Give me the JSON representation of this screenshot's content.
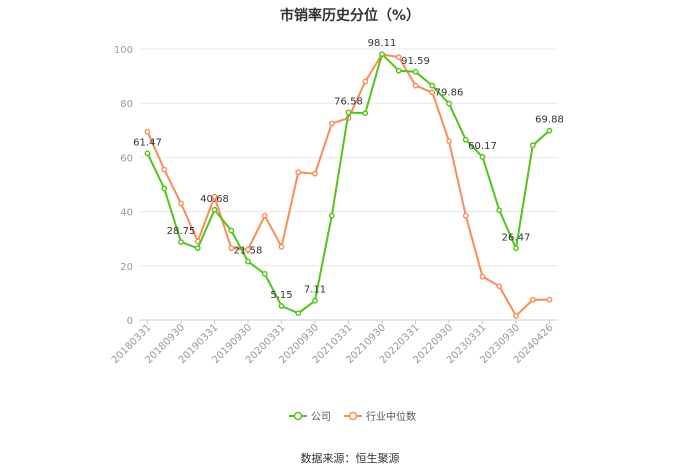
{
  "chart_data": {
    "type": "line",
    "title": "市销率历史分位（%）",
    "ylim": [
      0,
      100
    ],
    "yticks": [
      0,
      20,
      40,
      60,
      80,
      100
    ],
    "grid": true,
    "legend_position": "bottom",
    "x": [
      "20180331",
      "20180630",
      "20180930",
      "20181231",
      "20190331",
      "20190630",
      "20190930",
      "20191231",
      "20200331",
      "20200630",
      "20200930",
      "20201231",
      "20210331",
      "20210630",
      "20210930",
      "20211231",
      "20220331",
      "20220630",
      "20220930",
      "20221231",
      "20230331",
      "20230630",
      "20230930",
      "20231231",
      "20240426"
    ],
    "x_tick_labels": [
      "20180331",
      "20180930",
      "20190331",
      "20190930",
      "20200331",
      "20200930",
      "20210331",
      "20210930",
      "20220331",
      "20220930",
      "20230331",
      "20230930",
      "20240426"
    ],
    "series": [
      {
        "name": "公司",
        "color": "#52c41a",
        "values": [
          61.47,
          48.5,
          28.75,
          26.5,
          40.68,
          33,
          21.58,
          17,
          5.15,
          2.5,
          7.11,
          38.5,
          76.58,
          76.3,
          98.11,
          92,
          91.59,
          86.5,
          79.86,
          66.5,
          60.17,
          40.5,
          26.47,
          64.5,
          69.88
        ]
      },
      {
        "name": "行业中位数",
        "color": "#fa8c5a",
        "values": [
          69.5,
          55.5,
          43,
          29,
          45.5,
          26.5,
          26,
          38.5,
          27,
          54.5,
          54,
          72.5,
          74.5,
          88,
          98,
          97,
          86.5,
          84,
          66,
          38.5,
          16,
          12.5,
          1.5,
          7.5,
          7.5
        ]
      }
    ],
    "data_labels": [
      {
        "series": 0,
        "index": 0,
        "text": "61.47"
      },
      {
        "series": 0,
        "index": 2,
        "text": "28.75"
      },
      {
        "series": 0,
        "index": 4,
        "text": "40.68"
      },
      {
        "series": 0,
        "index": 6,
        "text": "21.58"
      },
      {
        "series": 0,
        "index": 8,
        "text": "5.15"
      },
      {
        "series": 0,
        "index": 10,
        "text": "7.11"
      },
      {
        "series": 0,
        "index": 12,
        "text": "76.58"
      },
      {
        "series": 0,
        "index": 14,
        "text": "98.11"
      },
      {
        "series": 0,
        "index": 16,
        "text": "91.59"
      },
      {
        "series": 0,
        "index": 18,
        "text": "79.86"
      },
      {
        "series": 0,
        "index": 20,
        "text": "60.17"
      },
      {
        "series": 0,
        "index": 22,
        "text": "26.47"
      },
      {
        "series": 0,
        "index": 24,
        "text": "69.88"
      }
    ]
  },
  "footer": {
    "source": "数据来源：恒生聚源"
  }
}
